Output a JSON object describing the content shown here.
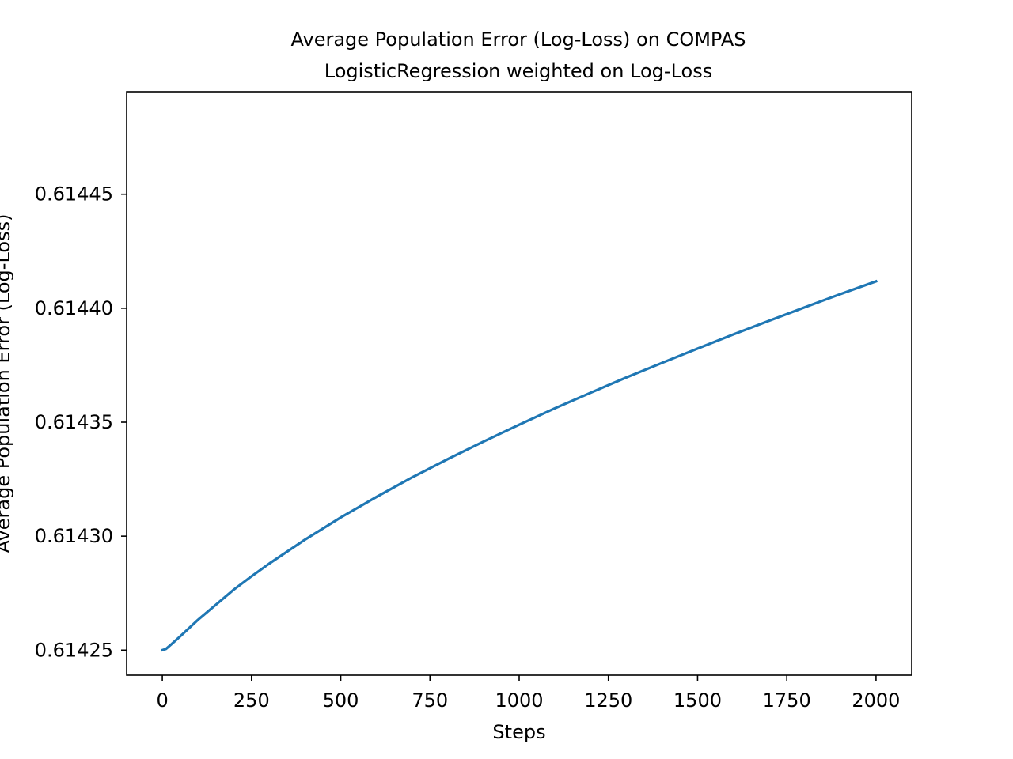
{
  "chart_data": {
    "type": "line",
    "title": "Average Population Error (Log-Loss) on COMPAS",
    "subtitle": "LogisticRegression weighted on Log-Loss",
    "xlabel": "Steps",
    "ylabel": "Average Population Error (Log-Loss)",
    "xlim": [
      -100,
      2100
    ],
    "ylim": [
      0.614239,
      0.614495
    ],
    "x_ticks": [
      0,
      250,
      500,
      750,
      1000,
      1250,
      1500,
      1750,
      2000
    ],
    "y_ticks": [
      0.61425,
      0.6143,
      0.61435,
      0.6144,
      0.61445
    ],
    "y_tick_labels": [
      "0.61425",
      "0.61430",
      "0.61435",
      "0.61440",
      "0.61445"
    ],
    "grid": false,
    "series": [
      {
        "color": "#1f77b4",
        "x": [
          0,
          10,
          25,
          50,
          100,
          150,
          200,
          250,
          300,
          400,
          500,
          600,
          700,
          800,
          900,
          1000,
          1100,
          1200,
          1300,
          1400,
          1500,
          1600,
          1700,
          1800,
          1900,
          2000
        ],
        "y": [
          0.61425,
          0.6142505,
          0.6142525,
          0.614256,
          0.6142633,
          0.6142699,
          0.6142765,
          0.6142824,
          0.614288,
          0.6142985,
          0.6143082,
          0.6143172,
          0.6143258,
          0.6143338,
          0.6143415,
          0.6143489,
          0.6143561,
          0.6143629,
          0.6143696,
          0.614376,
          0.6143823,
          0.6143885,
          0.6143945,
          0.6144004,
          0.6144062,
          0.6144118
        ]
      }
    ]
  }
}
